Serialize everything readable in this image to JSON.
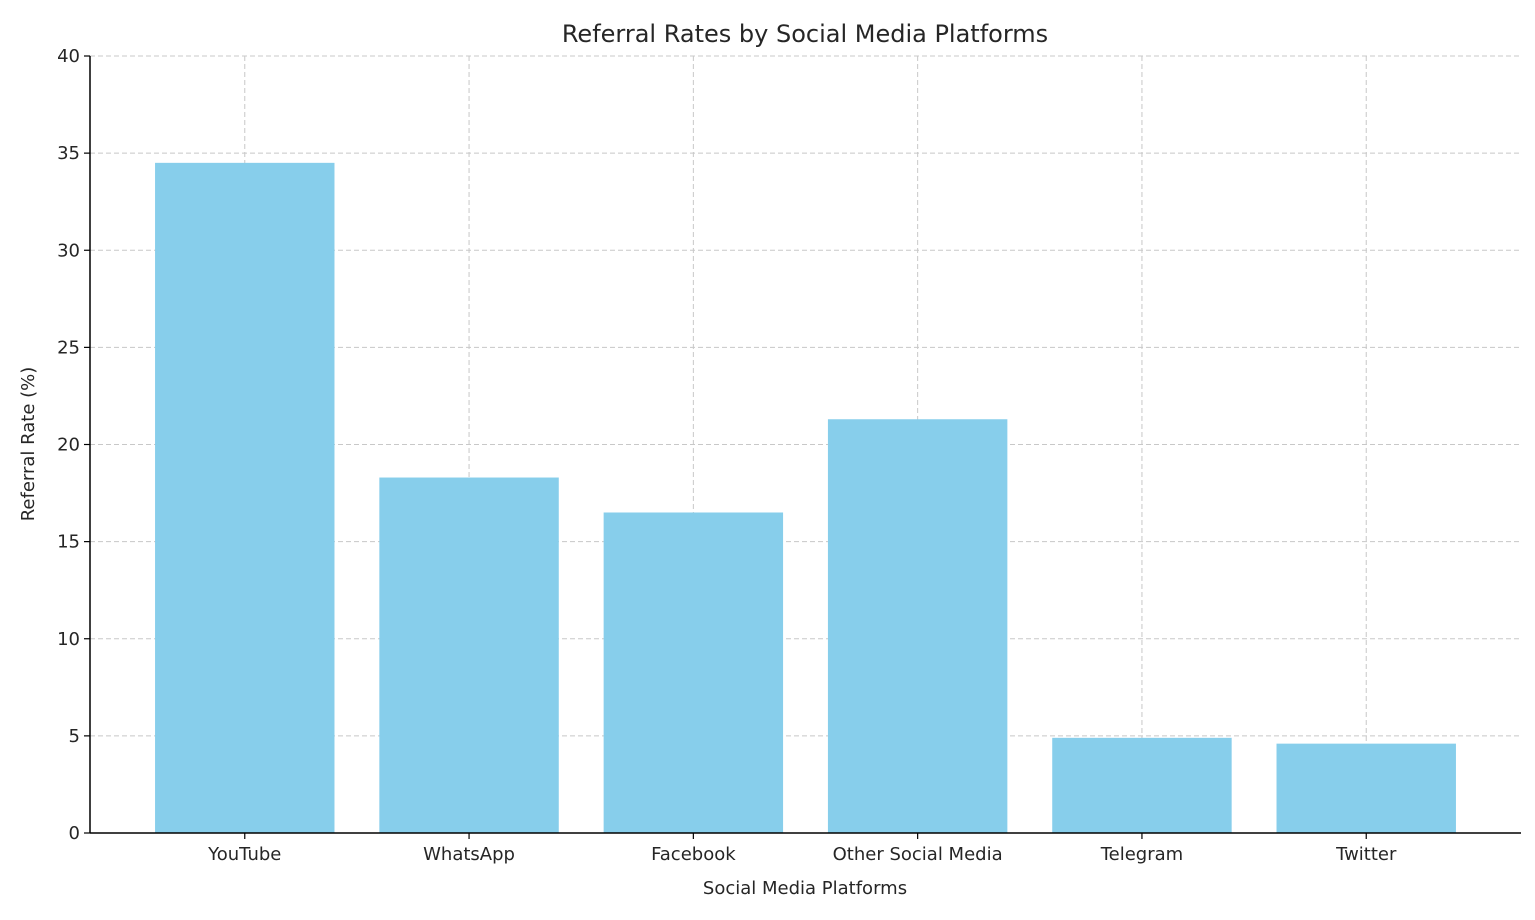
{
  "chart_data": {
    "type": "bar",
    "title": "Referral Rates by Social Media Platforms",
    "xlabel": "Social Media Platforms",
    "ylabel": "Referral Rate (%)",
    "categories": [
      "YouTube",
      "WhatsApp",
      "Facebook",
      "Other Social Media",
      "Telegram",
      "Twitter"
    ],
    "values": [
      34.5,
      18.3,
      16.5,
      21.3,
      4.9,
      4.6
    ],
    "ylim": [
      0,
      40
    ],
    "yticks": [
      0,
      5,
      10,
      15,
      20,
      25,
      30,
      35,
      40
    ],
    "grid": true,
    "bar_color": "#87CEEB"
  }
}
